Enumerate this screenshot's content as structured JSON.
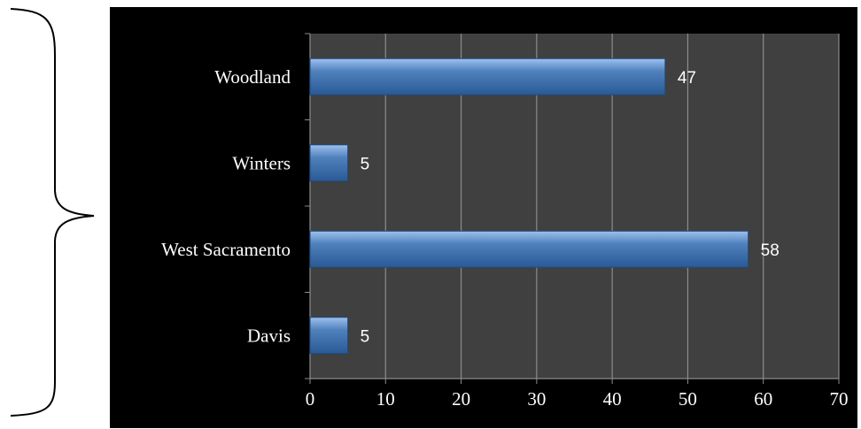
{
  "chart_data": {
    "type": "bar",
    "orientation": "horizontal",
    "categories": [
      "Davis",
      "West Sacramento",
      "Winters",
      "Woodland"
    ],
    "values": [
      5,
      58,
      5,
      47
    ],
    "xlim": [
      0,
      70
    ],
    "xticks": [
      0,
      10,
      20,
      30,
      40,
      50,
      60,
      70
    ],
    "data_labels": true,
    "grid": "vertical",
    "colors": {
      "page_background": "#000000",
      "plot_background": "#404040",
      "bar": "#4f81bd",
      "grid": "#8c8c8c",
      "text": "#ffffff"
    }
  }
}
